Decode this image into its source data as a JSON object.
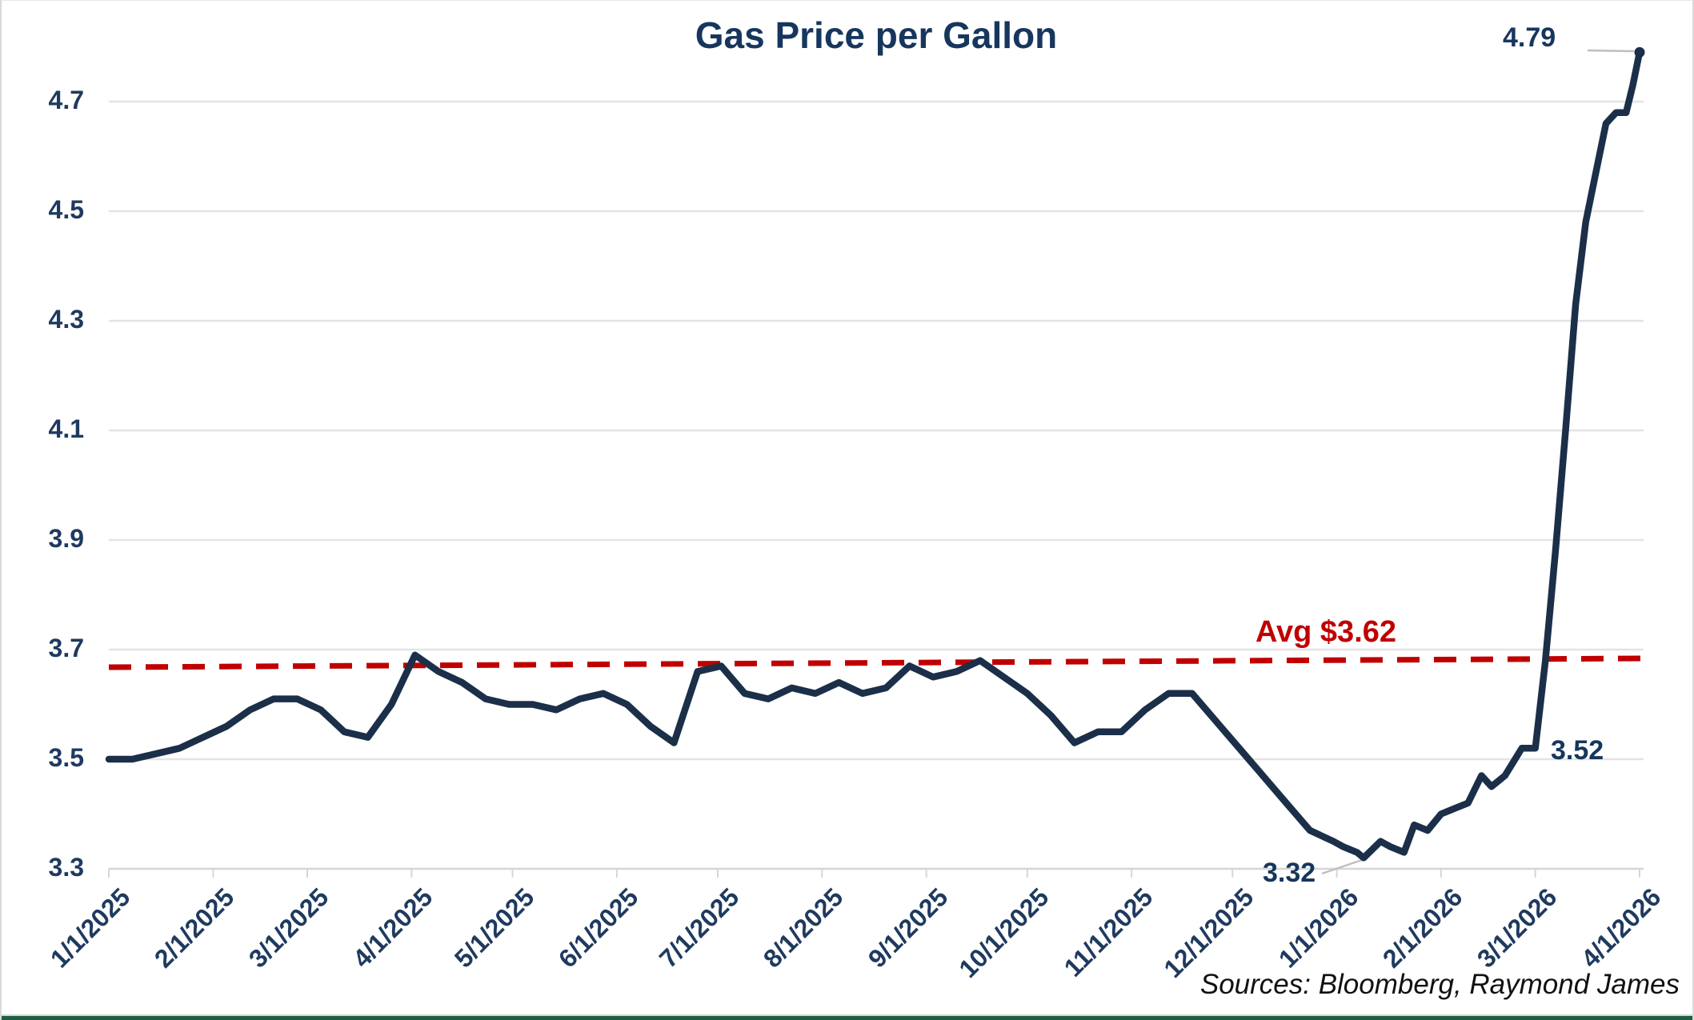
{
  "chart": {
    "title": "Gas Price per Gallon",
    "avg_label": "Avg $3.62",
    "annotation_high": "4.79",
    "annotation_pre_spike": "3.52",
    "annotation_low": "3.32",
    "source": "Sources: Bloomberg, Raymond James"
  },
  "colors": {
    "line_navy": "#1B2F49",
    "text_navy": "#17365D",
    "avg_red": "#C00000",
    "gridline": "#E4E4E4",
    "axis_line": "#D6D6D6",
    "leader_gray": "#BFBFBF",
    "frame_green": "#1D6042"
  },
  "chart_data": {
    "type": "line",
    "title": "Gas Price per Gallon",
    "xlabel": "",
    "ylabel": "",
    "ylim": [
      3.3,
      4.8
    ],
    "grid": "horizontal",
    "legend": "none",
    "y_ticks": [
      3.3,
      3.5,
      3.7,
      3.9,
      4.1,
      4.3,
      4.5,
      4.7
    ],
    "x_tick_labels": [
      "1/1/2025",
      "2/1/2025",
      "3/1/2025",
      "4/1/2025",
      "5/1/2025",
      "6/1/2025",
      "7/1/2025",
      "8/1/2025",
      "9/1/2025",
      "10/1/2025",
      "11/1/2025",
      "12/1/2025",
      "1/1/2026",
      "2/1/2026",
      "3/1/2026",
      "4/1/2026"
    ],
    "avg_line": {
      "value": 3.62,
      "label": "Avg $3.62",
      "color": "#C00000",
      "style": "dashed"
    },
    "annotations": [
      {
        "text": "4.79",
        "date": "2026-04-01",
        "value": 4.79,
        "meaning": "series high at end of chart"
      },
      {
        "text": "3.52",
        "date": "2026-03-01",
        "value": 3.52,
        "meaning": "level just before the spike"
      },
      {
        "text": "3.32",
        "date": "2026-01-09",
        "value": 3.32,
        "meaning": "series low"
      }
    ],
    "source": "Sources: Bloomberg, Raymond James",
    "series": [
      {
        "name": "Gas price per gallon (USD)",
        "color": "#1B2F49",
        "points": [
          [
            "2025-01-01",
            3.5
          ],
          [
            "2025-01-08",
            3.5
          ],
          [
            "2025-01-15",
            3.51
          ],
          [
            "2025-01-22",
            3.52
          ],
          [
            "2025-01-29",
            3.54
          ],
          [
            "2025-02-05",
            3.56
          ],
          [
            "2025-02-12",
            3.59
          ],
          [
            "2025-02-19",
            3.61
          ],
          [
            "2025-02-26",
            3.61
          ],
          [
            "2025-03-05",
            3.59
          ],
          [
            "2025-03-12",
            3.55
          ],
          [
            "2025-03-19",
            3.54
          ],
          [
            "2025-03-26",
            3.6
          ],
          [
            "2025-04-02",
            3.69
          ],
          [
            "2025-04-09",
            3.66
          ],
          [
            "2025-04-16",
            3.64
          ],
          [
            "2025-04-23",
            3.61
          ],
          [
            "2025-04-30",
            3.6
          ],
          [
            "2025-05-07",
            3.6
          ],
          [
            "2025-05-14",
            3.59
          ],
          [
            "2025-05-21",
            3.61
          ],
          [
            "2025-05-28",
            3.62
          ],
          [
            "2025-06-04",
            3.6
          ],
          [
            "2025-06-11",
            3.56
          ],
          [
            "2025-06-18",
            3.53
          ],
          [
            "2025-06-25",
            3.66
          ],
          [
            "2025-07-02",
            3.67
          ],
          [
            "2025-07-09",
            3.62
          ],
          [
            "2025-07-16",
            3.61
          ],
          [
            "2025-07-23",
            3.63
          ],
          [
            "2025-07-30",
            3.62
          ],
          [
            "2025-08-06",
            3.64
          ],
          [
            "2025-08-13",
            3.62
          ],
          [
            "2025-08-20",
            3.63
          ],
          [
            "2025-08-27",
            3.67
          ],
          [
            "2025-09-03",
            3.65
          ],
          [
            "2025-09-10",
            3.66
          ],
          [
            "2025-09-17",
            3.68
          ],
          [
            "2025-09-24",
            3.65
          ],
          [
            "2025-10-01",
            3.62
          ],
          [
            "2025-10-08",
            3.58
          ],
          [
            "2025-10-15",
            3.53
          ],
          [
            "2025-10-22",
            3.55
          ],
          [
            "2025-10-29",
            3.55
          ],
          [
            "2025-11-05",
            3.59
          ],
          [
            "2025-11-12",
            3.62
          ],
          [
            "2025-11-19",
            3.62
          ],
          [
            "2025-11-26",
            3.57
          ],
          [
            "2025-12-03",
            3.52
          ],
          [
            "2025-12-10",
            3.47
          ],
          [
            "2025-12-17",
            3.42
          ],
          [
            "2025-12-24",
            3.37
          ],
          [
            "2025-12-31",
            3.35
          ],
          [
            "2026-01-03",
            3.34
          ],
          [
            "2026-01-07",
            3.33
          ],
          [
            "2026-01-09",
            3.32
          ],
          [
            "2026-01-14",
            3.35
          ],
          [
            "2026-01-17",
            3.34
          ],
          [
            "2026-01-21",
            3.33
          ],
          [
            "2026-01-24",
            3.38
          ],
          [
            "2026-01-28",
            3.37
          ],
          [
            "2026-02-01",
            3.4
          ],
          [
            "2026-02-05",
            3.41
          ],
          [
            "2026-02-09",
            3.42
          ],
          [
            "2026-02-13",
            3.47
          ],
          [
            "2026-02-16",
            3.45
          ],
          [
            "2026-02-20",
            3.47
          ],
          [
            "2026-02-23",
            3.5
          ],
          [
            "2026-02-25",
            3.52
          ],
          [
            "2026-03-01",
            3.52
          ],
          [
            "2026-03-04",
            3.68
          ],
          [
            "2026-03-07",
            3.88
          ],
          [
            "2026-03-10",
            4.1
          ],
          [
            "2026-03-13",
            4.33
          ],
          [
            "2026-03-16",
            4.48
          ],
          [
            "2026-03-19",
            4.57
          ],
          [
            "2026-03-22",
            4.66
          ],
          [
            "2026-03-25",
            4.68
          ],
          [
            "2026-03-28",
            4.68
          ],
          [
            "2026-03-30",
            4.73
          ],
          [
            "2026-04-01",
            4.79
          ]
        ]
      }
    ]
  }
}
